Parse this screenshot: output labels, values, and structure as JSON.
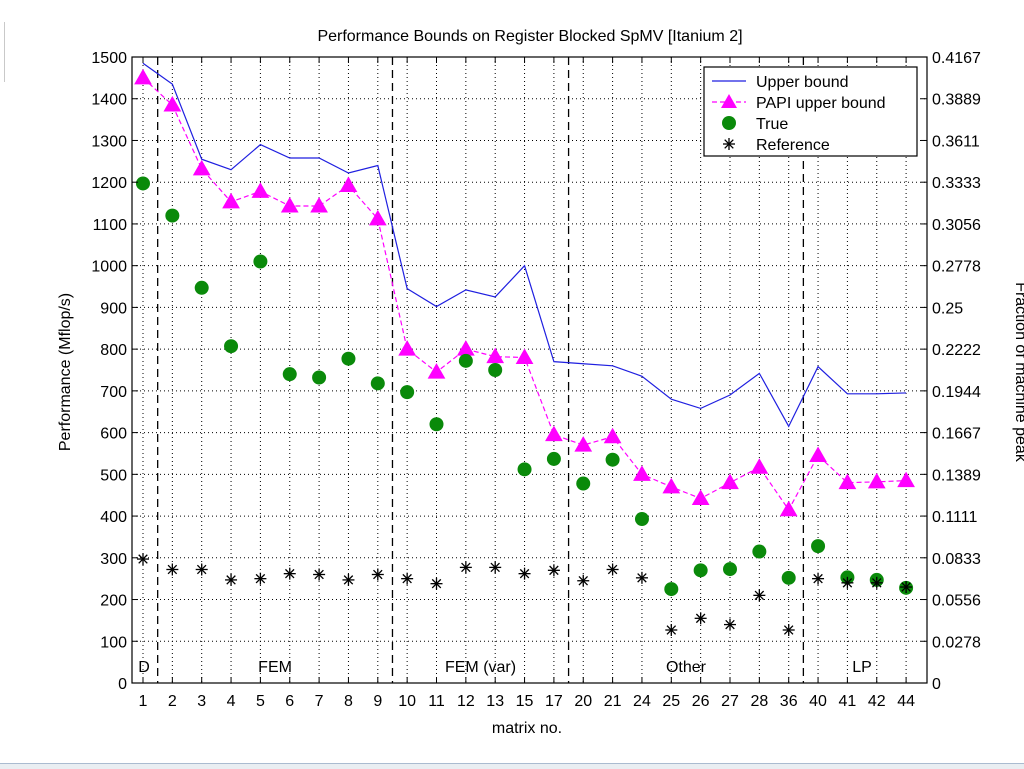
{
  "chart_data": {
    "type": "line",
    "title": "Performance Bounds on Register Blocked SpMV [Itanium 2]",
    "xlabel": "matrix no.",
    "ylabel": "Performance (Mflop/s)",
    "y2label": "Fraction of machine peak",
    "categories": [
      "1",
      "2",
      "3",
      "4",
      "5",
      "6",
      "7",
      "8",
      "9",
      "10",
      "11",
      "12",
      "13",
      "15",
      "17",
      "20",
      "21",
      "24",
      "25",
      "26",
      "27",
      "28",
      "36",
      "40",
      "41",
      "42",
      "44"
    ],
    "ylim": [
      0,
      1500
    ],
    "yticks": [
      0,
      100,
      200,
      300,
      400,
      500,
      600,
      700,
      800,
      900,
      1000,
      1100,
      1200,
      1300,
      1400,
      1500
    ],
    "y2ticks": [
      "0",
      "0.0278",
      "0.0556",
      "0.0833",
      "0.1111",
      "0.1389",
      "0.1667",
      "0.1944",
      "0.2222",
      "0.25",
      "0.2778",
      "0.3056",
      "0.3333",
      "0.3611",
      "0.3889",
      "0.4167"
    ],
    "grid": true,
    "legend_position": "top-right",
    "series": [
      {
        "name": "Upper bound",
        "style": "line",
        "color": "#1f1fe0",
        "values": [
          1485,
          1435,
          1255,
          1230,
          1290,
          1258,
          1258,
          1222,
          1240,
          945,
          902,
          942,
          925,
          1000,
          770,
          765,
          760,
          735,
          680,
          658,
          690,
          742,
          615,
          758,
          693,
          693,
          695
        ]
      },
      {
        "name": "PAPI upper bound",
        "style": "dashed-triangle",
        "color": "#ff00ff",
        "values": [
          1450,
          1385,
          1232,
          1153,
          1178,
          1143,
          1143,
          1192,
          1112,
          800,
          745,
          800,
          782,
          780,
          595,
          570,
          590,
          500,
          470,
          442,
          480,
          517,
          415,
          545,
          480,
          482,
          485
        ]
      },
      {
        "name": "True",
        "style": "marker-circle",
        "color": "#0a8a0a",
        "values": [
          1197,
          1120,
          947,
          807,
          1010,
          740,
          732,
          777,
          718,
          697,
          620,
          772,
          750,
          512,
          537,
          478,
          535,
          393,
          225,
          270,
          273,
          315,
          252,
          328,
          253,
          247,
          228
        ]
      },
      {
        "name": "Reference",
        "style": "marker-star",
        "color": "#000000",
        "values": [
          297,
          272,
          272,
          247,
          250,
          262,
          260,
          247,
          260,
          250,
          238,
          277,
          277,
          262,
          270,
          245,
          272,
          252,
          127,
          155,
          140,
          210,
          127,
          250,
          240,
          240,
          230
        ]
      }
    ],
    "regions": [
      {
        "label": "D",
        "start_index": 0,
        "end_index": 0
      },
      {
        "label": "FEM",
        "start_index": 1,
        "end_index": 8
      },
      {
        "label": "FEM (var)",
        "start_index": 9,
        "end_index": 14
      },
      {
        "label": "Other",
        "start_index": 15,
        "end_index": 22
      },
      {
        "label": "LP",
        "start_index": 23,
        "end_index": 26
      }
    ]
  }
}
